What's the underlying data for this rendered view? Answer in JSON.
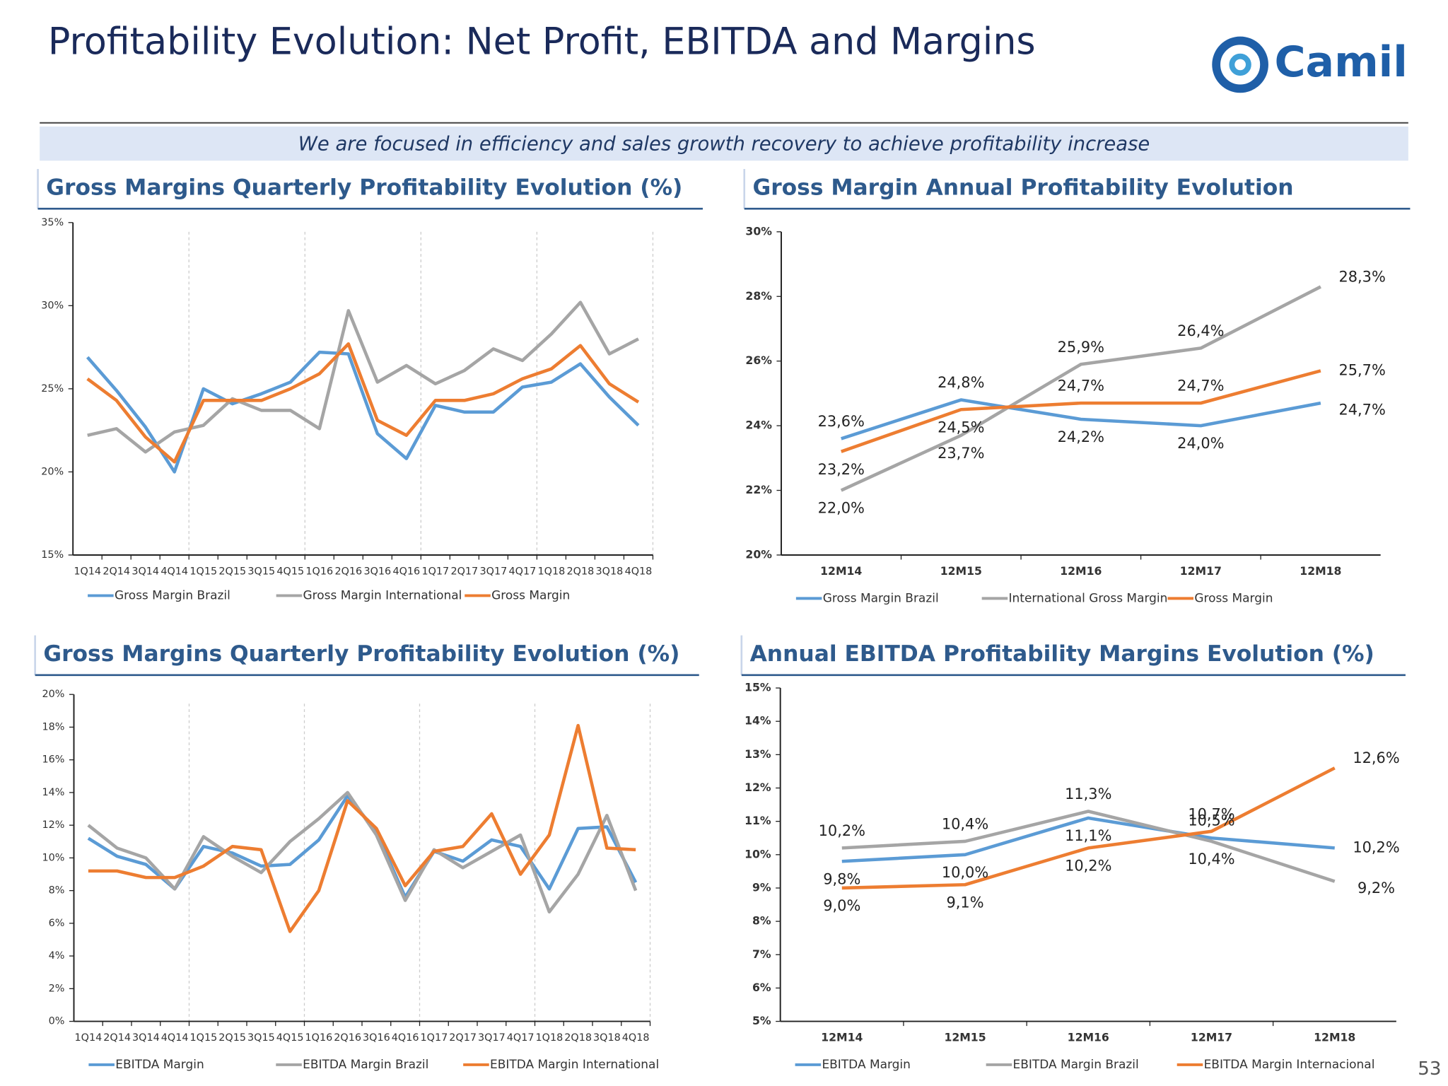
{
  "header": {
    "title": "Profitability Evolution: Net Profit, EBITDA and Margins",
    "logo": "Camil",
    "subtitle": "We are focused in efficiency and sales growth recovery to achieve profitability increase",
    "page_number": "53"
  },
  "chart_data": [
    {
      "type": "line",
      "title": "Gross Margins Quarterly Profitability Evolution (%)",
      "categories": [
        "1Q14",
        "2Q14",
        "3Q14",
        "4Q14",
        "1Q15",
        "2Q15",
        "3Q15",
        "4Q15",
        "1Q16",
        "2Q16",
        "3Q16",
        "4Q16",
        "1Q17",
        "2Q17",
        "3Q17",
        "4Q17",
        "1Q18",
        "2Q18",
        "3Q18",
        "4Q18"
      ],
      "ylim": [
        15,
        35
      ],
      "yticks": [
        {
          "value": 15,
          "label": "15%"
        },
        {
          "value": 20,
          "label": "20%"
        },
        {
          "value": 25,
          "label": "25%"
        },
        {
          "value": 30,
          "label": "30%"
        },
        {
          "value": 35,
          "label": "35%"
        }
      ],
      "series": [
        {
          "name": "Gross Margin Brazil",
          "color": "#5b9bd5",
          "values": [
            26.9,
            24.9,
            22.7,
            20.0,
            25.0,
            24.1,
            24.7,
            25.4,
            27.2,
            27.1,
            22.3,
            20.8,
            24.0,
            23.6,
            23.6,
            25.1,
            25.4,
            26.5,
            24.5,
            22.8
          ]
        },
        {
          "name": "Gross Margin International",
          "color": "#a5a5a5",
          "values": [
            22.2,
            22.6,
            21.2,
            22.4,
            22.8,
            24.4,
            23.7,
            23.7,
            22.6,
            29.7,
            25.4,
            26.4,
            25.3,
            26.1,
            27.4,
            26.7,
            28.3,
            30.2,
            27.1,
            28.0
          ]
        },
        {
          "name": "Gross Margin",
          "color": "#ed7d31",
          "values": [
            25.6,
            24.3,
            22.1,
            20.6,
            24.3,
            24.3,
            24.3,
            25.0,
            25.9,
            27.7,
            23.1,
            22.2,
            24.3,
            24.3,
            24.7,
            25.6,
            26.2,
            27.6,
            25.3,
            24.2
          ]
        }
      ]
    },
    {
      "type": "line",
      "title": "Gross Margin Annual Profitability Evolution",
      "categories": [
        "12M14",
        "12M15",
        "12M16",
        "12M17",
        "12M18"
      ],
      "ylim": [
        20,
        30
      ],
      "yticks": [
        {
          "value": 20,
          "label": "20%"
        },
        {
          "value": 22,
          "label": "22%"
        },
        {
          "value": 24,
          "label": "24%"
        },
        {
          "value": 26,
          "label": "26%"
        },
        {
          "value": 28,
          "label": "28%"
        },
        {
          "value": 30,
          "label": "30%"
        }
      ],
      "series": [
        {
          "name": "Gross Margin Brazil",
          "color": "#5b9bd5",
          "values": [
            23.6,
            24.8,
            24.2,
            24.0,
            24.7
          ],
          "value_labels": [
            "23,6%",
            "24,8%",
            "24,2%",
            "24,0%",
            "24,7%"
          ]
        },
        {
          "name": "International Gross Margin",
          "color": "#a5a5a5",
          "values": [
            22.0,
            23.7,
            25.9,
            26.4,
            28.3
          ],
          "value_labels": [
            "22,0%",
            "23,7%",
            "25,9%",
            "26,4%",
            "28,3%"
          ]
        },
        {
          "name": "Gross Margin",
          "color": "#ed7d31",
          "values": [
            23.2,
            24.5,
            24.7,
            24.7,
            25.7
          ],
          "value_labels": [
            "23,2%",
            "24,5%",
            "24,7%",
            "24,7%",
            "25,7%"
          ]
        }
      ]
    },
    {
      "type": "line",
      "title": "Gross Margins Quarterly Profitability Evolution (%)",
      "categories": [
        "1Q14",
        "2Q14",
        "3Q14",
        "4Q14",
        "1Q15",
        "2Q15",
        "3Q15",
        "4Q15",
        "1Q16",
        "2Q16",
        "3Q16",
        "4Q16",
        "1Q17",
        "2Q17",
        "3Q17",
        "4Q17",
        "1Q18",
        "2Q18",
        "3Q18",
        "4Q18"
      ],
      "ylim": [
        0,
        20
      ],
      "yticks": [
        {
          "value": 0,
          "label": "0%"
        },
        {
          "value": 2,
          "label": "2%"
        },
        {
          "value": 4,
          "label": "4%"
        },
        {
          "value": 6,
          "label": "6%"
        },
        {
          "value": 8,
          "label": "8%"
        },
        {
          "value": 10,
          "label": "10%"
        },
        {
          "value": 12,
          "label": "12%"
        },
        {
          "value": 14,
          "label": "14%"
        },
        {
          "value": 16,
          "label": "16%"
        },
        {
          "value": 18,
          "label": "18%"
        },
        {
          "value": 20,
          "label": "20%"
        }
      ],
      "series": [
        {
          "name": "EBITDA Margin",
          "color": "#5b9bd5",
          "values": [
            11.2,
            10.1,
            9.6,
            8.1,
            10.7,
            10.3,
            9.5,
            9.6,
            11.1,
            13.8,
            11.6,
            7.6,
            10.4,
            9.8,
            11.1,
            10.7,
            8.1,
            11.8,
            11.9,
            8.5
          ]
        },
        {
          "name": "EBITDA Margin Brazil",
          "color": "#a5a5a5",
          "values": [
            12.0,
            10.6,
            10.0,
            8.1,
            11.3,
            10.1,
            9.1,
            11.0,
            12.4,
            14.0,
            11.4,
            7.4,
            10.5,
            9.4,
            10.4,
            11.4,
            6.7,
            9.0,
            12.6,
            8.0
          ]
        },
        {
          "name": "EBITDA Margin International",
          "color": "#ed7d31",
          "values": [
            9.2,
            9.2,
            8.8,
            8.8,
            9.5,
            10.7,
            10.5,
            5.5,
            8.0,
            13.5,
            11.8,
            8.3,
            10.4,
            10.7,
            12.7,
            9.0,
            11.4,
            18.1,
            10.6,
            10.5
          ]
        }
      ]
    },
    {
      "type": "line",
      "title": "Annual EBITDA Profitability Margins Evolution (%)",
      "categories": [
        "12M14",
        "12M15",
        "12M16",
        "12M17",
        "12M18"
      ],
      "ylim": [
        5,
        15
      ],
      "yticks": [
        {
          "value": 5,
          "label": "5%"
        },
        {
          "value": 6,
          "label": "6%"
        },
        {
          "value": 7,
          "label": "7%"
        },
        {
          "value": 8,
          "label": "8%"
        },
        {
          "value": 9,
          "label": "9%"
        },
        {
          "value": 10,
          "label": "10%"
        },
        {
          "value": 11,
          "label": "11%"
        },
        {
          "value": 12,
          "label": "12%"
        },
        {
          "value": 13,
          "label": "13%"
        },
        {
          "value": 14,
          "label": "14%"
        },
        {
          "value": 15,
          "label": "15%"
        }
      ],
      "series": [
        {
          "name": "EBITDA Margin",
          "color": "#5b9bd5",
          "values": [
            9.8,
            10.0,
            11.1,
            10.5,
            10.2
          ],
          "value_labels": [
            "9,8%",
            "10,0%",
            "11,1%",
            "10,5%",
            "10,2%"
          ]
        },
        {
          "name": "EBITDA Margin Brazil",
          "color": "#a5a5a5",
          "values": [
            10.2,
            10.4,
            11.3,
            10.4,
            9.2
          ],
          "value_labels": [
            "10,2%",
            "10,4%",
            "11,3%",
            "10,4%",
            "9,2%"
          ]
        },
        {
          "name": "EBITDA Margin Internacional",
          "color": "#ed7d31",
          "values": [
            9.0,
            9.1,
            10.2,
            10.7,
            12.6
          ],
          "value_labels": [
            "9,0%",
            "9,1%",
            "10,2%",
            "10,7%",
            "12,6%"
          ]
        }
      ]
    }
  ]
}
